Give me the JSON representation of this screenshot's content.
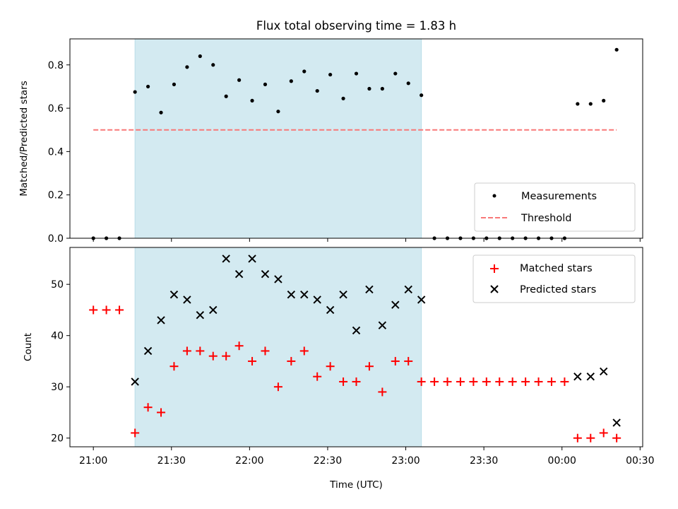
{
  "chart_data": [
    {
      "type": "scatter",
      "title": "Flux total observing time = 1.83 h",
      "ylabel": "Matched/Predicted stars",
      "xlabel": "",
      "xlim": [
        "20:51",
        "00:31"
      ],
      "ylim": [
        0,
        0.92
      ],
      "yticks": [
        "0.0",
        "0.2",
        "0.4",
        "0.6",
        "0.8"
      ],
      "grid": false,
      "legend_position": "lower-right",
      "shaded_span": {
        "start": "21:16",
        "end": "23:06",
        "color": "#d3eaf1"
      },
      "threshold_value": 0.5,
      "threshold_range": [
        "21:00",
        "00:21"
      ],
      "series": [
        {
          "name": "Measurements",
          "marker": "dot",
          "color": "#000000",
          "x": [
            "21:00",
            "21:05",
            "21:10",
            "21:16",
            "21:21",
            "21:26",
            "21:31",
            "21:36",
            "21:41",
            "21:46",
            "21:51",
            "21:56",
            "22:01",
            "22:06",
            "22:11",
            "22:16",
            "22:21",
            "22:26",
            "22:31",
            "22:36",
            "22:41",
            "22:46",
            "22:51",
            "22:56",
            "23:01",
            "23:06",
            "23:11",
            "23:16",
            "23:21",
            "23:26",
            "23:31",
            "23:36",
            "23:41",
            "23:46",
            "23:51",
            "23:56",
            "00:01",
            "00:06",
            "00:11",
            "00:16",
            "00:21"
          ],
          "y": [
            0,
            0,
            0,
            0.675,
            0.7,
            0.58,
            0.71,
            0.79,
            0.84,
            0.8,
            0.655,
            0.73,
            0.635,
            0.71,
            0.585,
            0.725,
            0.77,
            0.68,
            0.755,
            0.645,
            0.76,
            0.69,
            0.69,
            0.76,
            0.715,
            0.66,
            0,
            0,
            0,
            0,
            0,
            0,
            0,
            0,
            0,
            0,
            0,
            0.62,
            0.62,
            0.635,
            0.87
          ]
        },
        {
          "name": "Threshold",
          "marker": "dashed-line",
          "color": "#f87878"
        }
      ]
    },
    {
      "type": "scatter",
      "title": "",
      "ylabel": "Count",
      "xlabel": "Time (UTC)",
      "xlim": [
        "20:51",
        "00:31"
      ],
      "ylim": [
        18.3,
        57.2
      ],
      "yticks": [
        "20",
        "30",
        "40",
        "50"
      ],
      "xticks": [
        "21:00",
        "21:30",
        "22:00",
        "22:30",
        "23:00",
        "23:30",
        "00:00",
        "00:30"
      ],
      "grid": false,
      "legend_position": "upper-right",
      "series": [
        {
          "name": "Matched stars",
          "marker": "plus",
          "color": "#ff0000",
          "x": [
            "21:00",
            "21:05",
            "21:10",
            "21:16",
            "21:21",
            "21:26",
            "21:31",
            "21:36",
            "21:41",
            "21:46",
            "21:51",
            "21:56",
            "22:01",
            "22:06",
            "22:11",
            "22:16",
            "22:21",
            "22:26",
            "22:31",
            "22:36",
            "22:41",
            "22:46",
            "22:51",
            "22:56",
            "23:01",
            "23:06",
            "23:11",
            "23:16",
            "23:21",
            "23:26",
            "23:31",
            "23:36",
            "23:41",
            "23:46",
            "23:51",
            "23:56",
            "00:01",
            "00:06",
            "00:11",
            "00:16",
            "00:21"
          ],
          "y": [
            45,
            45,
            45,
            21,
            26,
            25,
            34,
            37,
            37,
            36,
            36,
            38,
            35,
            37,
            30,
            35,
            37,
            32,
            34,
            31,
            31,
            34,
            29,
            35,
            35,
            31,
            31,
            31,
            31,
            31,
            31,
            31,
            31,
            31,
            31,
            31,
            31,
            20,
            20,
            21,
            20
          ]
        },
        {
          "name": "Predicted stars",
          "marker": "x",
          "color": "#000000",
          "x": [
            "21:16",
            "21:21",
            "21:26",
            "21:31",
            "21:36",
            "21:41",
            "21:46",
            "21:51",
            "21:56",
            "22:01",
            "22:06",
            "22:11",
            "22:16",
            "22:21",
            "22:26",
            "22:31",
            "22:36",
            "22:41",
            "22:46",
            "22:51",
            "22:56",
            "23:01",
            "23:06",
            "00:06",
            "00:11",
            "00:16",
            "00:21"
          ],
          "y": [
            31,
            37,
            43,
            48,
            47,
            44,
            45,
            55,
            52,
            55,
            52,
            51,
            48,
            48,
            47,
            45,
            48,
            41,
            49,
            42,
            46,
            49,
            47,
            32,
            32,
            33,
            23
          ]
        }
      ]
    }
  ]
}
